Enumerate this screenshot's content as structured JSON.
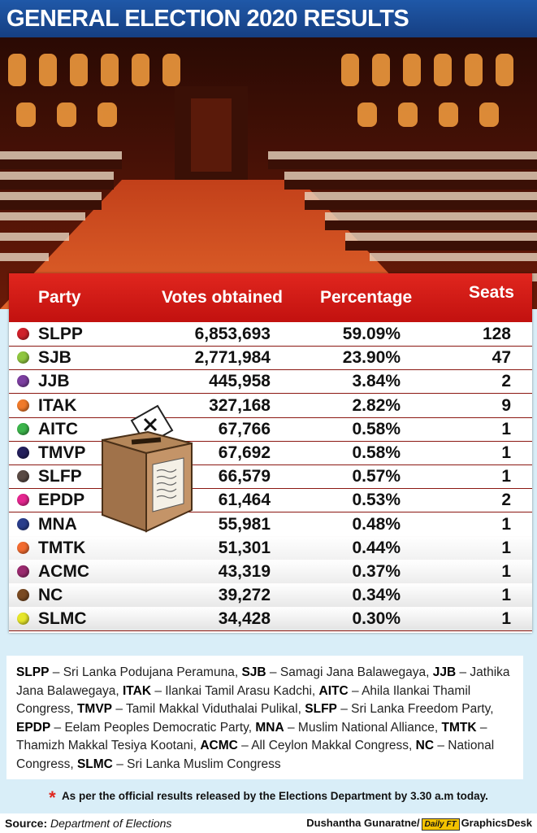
{
  "header": {
    "title": "GENERAL ELECTION 2020 RESULTS"
  },
  "table": {
    "columns": [
      "Party",
      "Votes obtained",
      "Percentage",
      "Seats"
    ],
    "rows": [
      {
        "party": "SLPP",
        "votes": "6,853,693",
        "pct": "59.09%",
        "seats": "128",
        "color": "#d0202a"
      },
      {
        "party": "SJB",
        "votes": "2,771,984",
        "pct": "23.90%",
        "seats": "47",
        "color": "#8fc63f"
      },
      {
        "party": "JJB",
        "votes": "445,958",
        "pct": "3.84%",
        "seats": "2",
        "color": "#7c3fa0"
      },
      {
        "party": "ITAK",
        "votes": "327,168",
        "pct": "2.82%",
        "seats": "9",
        "color": "#f07a2a"
      },
      {
        "party": "AITC",
        "votes": "67,766",
        "pct": "0.58%",
        "seats": "1",
        "color": "#3cb44b"
      },
      {
        "party": "TMVP",
        "votes": "67,692",
        "pct": "0.58%",
        "seats": "1",
        "color": "#241f5c"
      },
      {
        "party": "SLFP",
        "votes": "66,579",
        "pct": "0.57%",
        "seats": "1",
        "color": "#5a4a44"
      },
      {
        "party": "EPDP",
        "votes": "61,464",
        "pct": "0.53%",
        "seats": "2",
        "color": "#e4268f"
      },
      {
        "party": "MNA",
        "votes": "55,981",
        "pct": "0.48%",
        "seats": "1",
        "color": "#2a3e8c"
      },
      {
        "party": "TMTK",
        "votes": "51,301",
        "pct": "0.44%",
        "seats": "1",
        "color": "#f26b30"
      },
      {
        "party": "ACMC",
        "votes": "43,319",
        "pct": "0.37%",
        "seats": "1",
        "color": "#9a2a6e"
      },
      {
        "party": "NC",
        "votes": "39,272",
        "pct": "0.34%",
        "seats": "1",
        "color": "#7a4a22"
      },
      {
        "party": "SLMC",
        "votes": "34,428",
        "pct": "0.30%",
        "seats": "1",
        "color": "#e6e62a"
      }
    ]
  },
  "chart_data": {
    "type": "table",
    "columns": [
      "Party",
      "Votes obtained",
      "Percentage",
      "Seats"
    ],
    "categories": [
      "SLPP",
      "SJB",
      "JJB",
      "ITAK",
      "AITC",
      "TMVP",
      "SLFP",
      "EPDP",
      "MNA",
      "TMTK",
      "ACMC",
      "NC",
      "SLMC"
    ],
    "series": [
      {
        "name": "Votes obtained",
        "values": [
          6853693,
          2771984,
          445958,
          327168,
          67766,
          67692,
          66579,
          61464,
          55981,
          51301,
          43319,
          39272,
          34428
        ]
      },
      {
        "name": "Percentage",
        "values": [
          59.09,
          23.9,
          3.84,
          2.82,
          0.58,
          0.58,
          0.57,
          0.53,
          0.48,
          0.44,
          0.37,
          0.34,
          0.3
        ]
      },
      {
        "name": "Seats",
        "values": [
          128,
          47,
          2,
          9,
          1,
          1,
          1,
          2,
          1,
          1,
          1,
          1,
          1
        ]
      }
    ],
    "title": "GENERAL ELECTION 2020 RESULTS"
  },
  "legend": [
    {
      "abbr": "SLPP",
      "name": "Sri Lanka Podujana Peramuna"
    },
    {
      "abbr": "SJB",
      "name": "Samagi Jana Balawegaya"
    },
    {
      "abbr": "JJB",
      "name": "Jathika Jana Balawegaya"
    },
    {
      "abbr": "ITAK",
      "name": "Ilankai Tamil Arasu Kadchi"
    },
    {
      "abbr": "AITC",
      "name": "Ahila Ilankai Thamil Congress"
    },
    {
      "abbr": "TMVP",
      "name": "Tamil Makkal Viduthalai Pulikal"
    },
    {
      "abbr": "SLFP",
      "name": "Sri Lanka Freedom Party"
    },
    {
      "abbr": "EPDP",
      "name": "Eelam Peoples Democratic Party"
    },
    {
      "abbr": "MNA",
      "name": "Muslim National Alliance"
    },
    {
      "abbr": "TMTK",
      "name": "Thamizh Makkal Tesiya Kootani"
    },
    {
      "abbr": "ACMC",
      "name": "All Ceylon Makkal Congress"
    },
    {
      "abbr": "NC",
      "name": "National Congress"
    },
    {
      "abbr": "SLMC",
      "name": "Sri Lanka Muslim Congress"
    }
  ],
  "note": {
    "star": "*",
    "text": "As per the official results released by the Elections Department by 3.30 a.m today."
  },
  "footer": {
    "source_label": "Source:",
    "source_text": "Department of Elections",
    "credit": "Dushantha Gunaratne/",
    "logo_text": "Daily FT",
    "desk": "GraphicsDesk"
  },
  "colors": {
    "banner": "#1f58a8",
    "table_header": "#e0261e",
    "row_divider": "#8b1812",
    "background": "#d9eef8"
  }
}
